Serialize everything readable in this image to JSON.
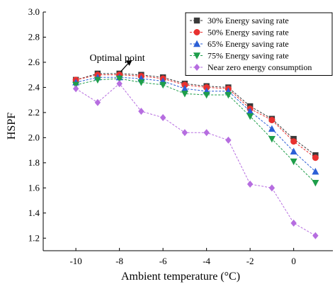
{
  "chart_data": {
    "type": "line",
    "ylabel": "HSPF",
    "xlabel": "Ambient temperature (°C)",
    "xlim": [
      -11.5,
      1.8
    ],
    "ylim": [
      1.1,
      3.0
    ],
    "x_ticks": [
      -10,
      -8,
      -6,
      -4,
      -2,
      0
    ],
    "y_ticks": [
      1.2,
      1.4,
      1.6,
      1.8,
      2.0,
      2.2,
      2.4,
      2.6,
      2.8,
      3.0
    ],
    "x": [
      -10,
      -9,
      -8,
      -7,
      -6,
      -5,
      -4,
      -3,
      -2,
      -1,
      0,
      1
    ],
    "legend_position": "top-right",
    "grid": false,
    "annotation": {
      "text": "Optimal point",
      "x": -8,
      "y": 2.51
    },
    "series": [
      {
        "name": "30% Energy saving rate",
        "color": "#3a3a3a",
        "marker": "square",
        "values": [
          2.46,
          2.51,
          2.51,
          2.5,
          2.48,
          2.43,
          2.41,
          2.4,
          2.25,
          2.15,
          1.99,
          1.86
        ]
      },
      {
        "name": "50% Energy saving rate",
        "color": "#e8312f",
        "marker": "circle",
        "values": [
          2.46,
          2.5,
          2.5,
          2.49,
          2.47,
          2.42,
          2.4,
          2.39,
          2.23,
          2.14,
          1.97,
          1.84
        ]
      },
      {
        "name": "65% Energy saving rate",
        "color": "#2b5fd6",
        "marker": "triangle-up",
        "values": [
          2.44,
          2.48,
          2.48,
          2.47,
          2.45,
          2.39,
          2.37,
          2.37,
          2.21,
          2.07,
          1.89,
          1.73
        ]
      },
      {
        "name": "75% Energy saving rate",
        "color": "#1e9e4a",
        "marker": "triangle-down",
        "values": [
          2.42,
          2.46,
          2.47,
          2.44,
          2.42,
          2.35,
          2.34,
          2.34,
          2.17,
          1.99,
          1.81,
          1.64
        ]
      },
      {
        "name": "Near zero energy consumption",
        "color": "#b66de0",
        "marker": "diamond",
        "values": [
          2.39,
          2.28,
          2.43,
          2.21,
          2.16,
          2.04,
          2.04,
          1.98,
          1.63,
          1.6,
          1.32,
          1.22
        ]
      }
    ]
  }
}
